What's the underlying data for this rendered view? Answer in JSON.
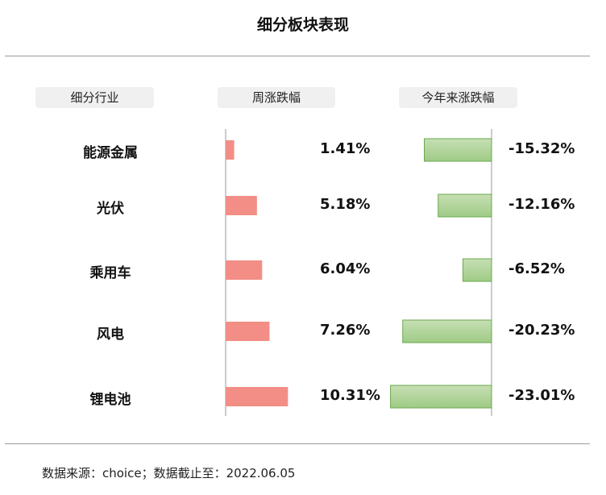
{
  "title": "细分板块表现",
  "headers": {
    "industry": "细分行业",
    "weekly": "周涨跌幅",
    "ytd": "今年来涨跌幅"
  },
  "source": "数据来源：choice；数据截止至：2022.06.05",
  "colors": {
    "weekly_bar": "#f28e86",
    "ytd_bar_start": "#c6dfb4",
    "ytd_bar_end": "#9fcb85",
    "ytd_border": "#6aa84f"
  },
  "chart_data": {
    "type": "bar",
    "categories": [
      "能源金属",
      "光伏",
      "乘用车",
      "风电",
      "锂电池"
    ],
    "series": [
      {
        "name": "周涨跌幅",
        "values": [
          1.41,
          5.18,
          6.04,
          7.26,
          10.31
        ],
        "labels": [
          "1.41%",
          "5.18%",
          "6.04%",
          "7.26%",
          "10.31%"
        ]
      },
      {
        "name": "今年来涨跌幅",
        "values": [
          -15.32,
          -12.16,
          -6.52,
          -20.23,
          -23.01
        ],
        "labels": [
          "-15.32%",
          "-12.16%",
          "-6.52%",
          "-20.23%",
          "-23.01%"
        ]
      }
    ]
  }
}
